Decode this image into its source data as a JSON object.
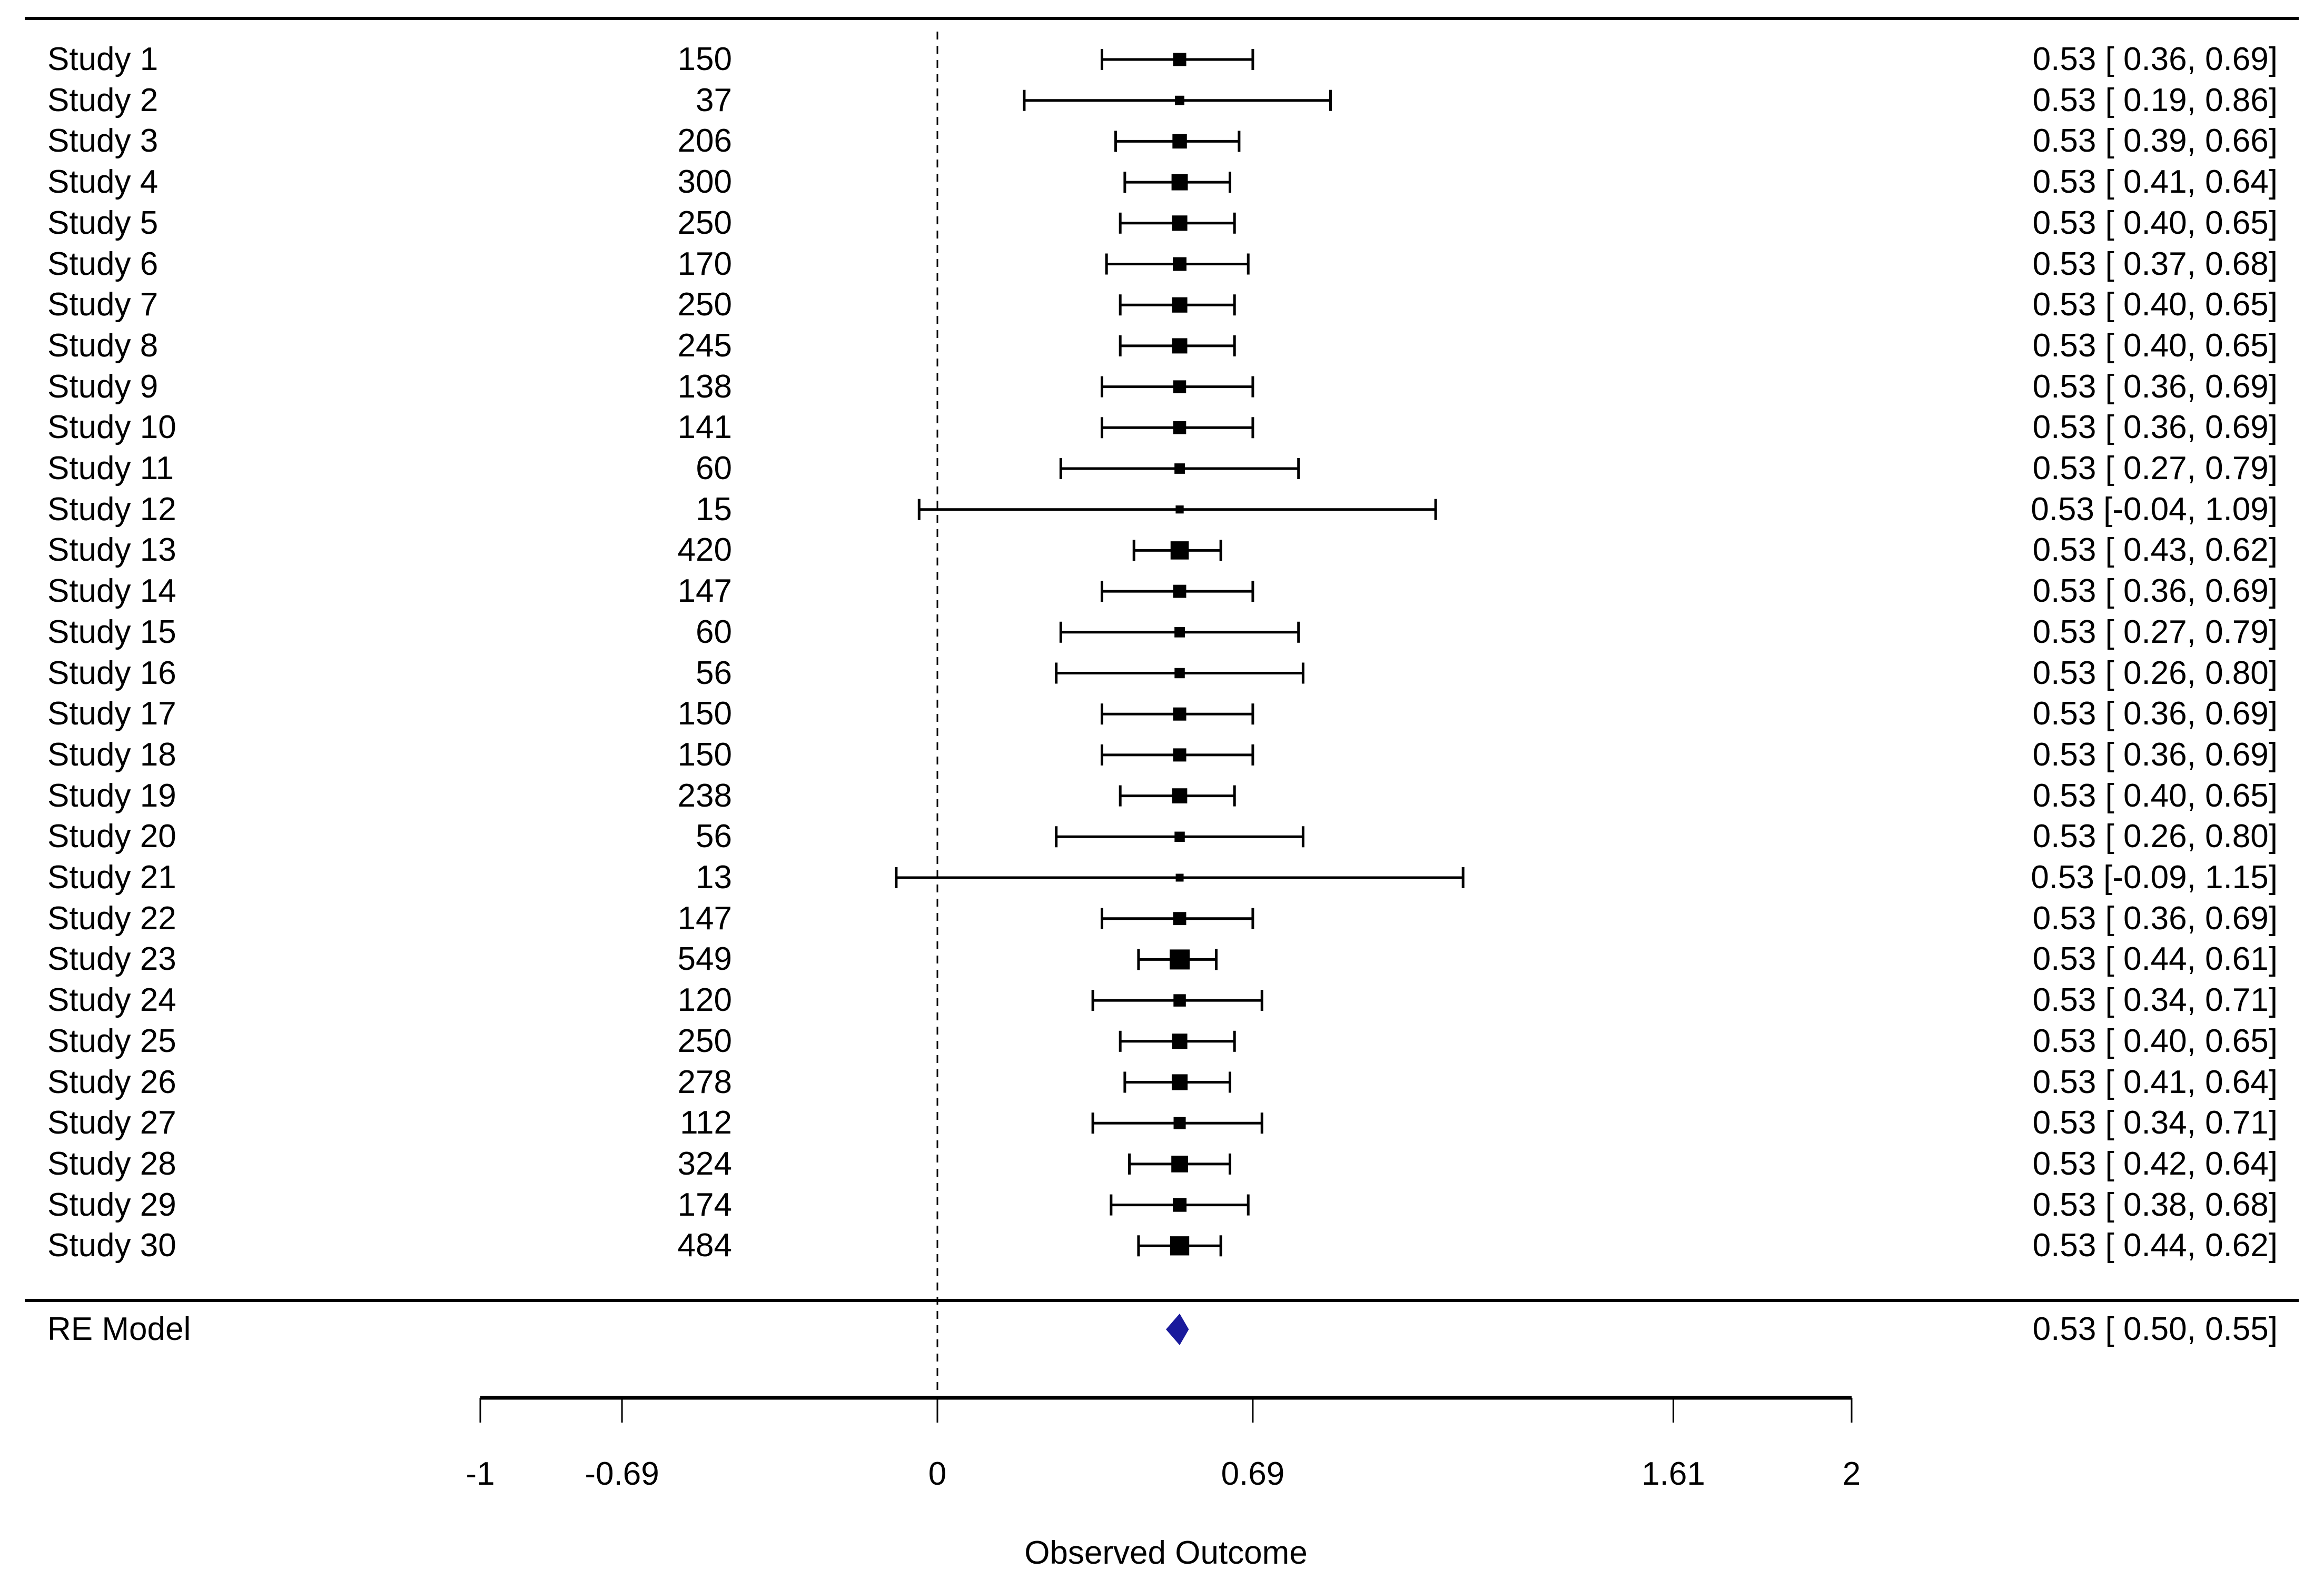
{
  "chart_data": {
    "type": "forest",
    "title": "",
    "xlabel": "Observed Outcome",
    "ylabel": "",
    "xlim": [
      -1,
      2
    ],
    "grid": false,
    "legend_position": "none",
    "reference_line": 0,
    "x_ticks": [
      {
        "value": -1,
        "label": "-1"
      },
      {
        "value": -0.69,
        "label": "-0.69"
      },
      {
        "value": 0,
        "label": "0"
      },
      {
        "value": 0.69,
        "label": "0.69"
      },
      {
        "value": 1.61,
        "label": "1.61"
      },
      {
        "value": 2,
        "label": "2"
      }
    ],
    "studies": [
      {
        "label": "Study 1",
        "n": 150,
        "est": 0.53,
        "lb": 0.36,
        "ub": 0.69,
        "annotation": "0.53 [ 0.36, 0.69]"
      },
      {
        "label": "Study 2",
        "n": 37,
        "est": 0.53,
        "lb": 0.19,
        "ub": 0.86,
        "annotation": "0.53 [ 0.19, 0.86]"
      },
      {
        "label": "Study 3",
        "n": 206,
        "est": 0.53,
        "lb": 0.39,
        "ub": 0.66,
        "annotation": "0.53 [ 0.39, 0.66]"
      },
      {
        "label": "Study 4",
        "n": 300,
        "est": 0.53,
        "lb": 0.41,
        "ub": 0.64,
        "annotation": "0.53 [ 0.41, 0.64]"
      },
      {
        "label": "Study 5",
        "n": 250,
        "est": 0.53,
        "lb": 0.4,
        "ub": 0.65,
        "annotation": "0.53 [ 0.40, 0.65]"
      },
      {
        "label": "Study 6",
        "n": 170,
        "est": 0.53,
        "lb": 0.37,
        "ub": 0.68,
        "annotation": "0.53 [ 0.37, 0.68]"
      },
      {
        "label": "Study 7",
        "n": 250,
        "est": 0.53,
        "lb": 0.4,
        "ub": 0.65,
        "annotation": "0.53 [ 0.40, 0.65]"
      },
      {
        "label": "Study 8",
        "n": 245,
        "est": 0.53,
        "lb": 0.4,
        "ub": 0.65,
        "annotation": "0.53 [ 0.40, 0.65]"
      },
      {
        "label": "Study 9",
        "n": 138,
        "est": 0.53,
        "lb": 0.36,
        "ub": 0.69,
        "annotation": "0.53 [ 0.36, 0.69]"
      },
      {
        "label": "Study 10",
        "n": 141,
        "est": 0.53,
        "lb": 0.36,
        "ub": 0.69,
        "annotation": "0.53 [ 0.36, 0.69]"
      },
      {
        "label": "Study 11",
        "n": 60,
        "est": 0.53,
        "lb": 0.27,
        "ub": 0.79,
        "annotation": "0.53 [ 0.27, 0.79]"
      },
      {
        "label": "Study 12",
        "n": 15,
        "est": 0.53,
        "lb": -0.04,
        "ub": 1.09,
        "annotation": "0.53 [-0.04, 1.09]"
      },
      {
        "label": "Study 13",
        "n": 420,
        "est": 0.53,
        "lb": 0.43,
        "ub": 0.62,
        "annotation": "0.53 [ 0.43, 0.62]"
      },
      {
        "label": "Study 14",
        "n": 147,
        "est": 0.53,
        "lb": 0.36,
        "ub": 0.69,
        "annotation": "0.53 [ 0.36, 0.69]"
      },
      {
        "label": "Study 15",
        "n": 60,
        "est": 0.53,
        "lb": 0.27,
        "ub": 0.79,
        "annotation": "0.53 [ 0.27, 0.79]"
      },
      {
        "label": "Study 16",
        "n": 56,
        "est": 0.53,
        "lb": 0.26,
        "ub": 0.8,
        "annotation": "0.53 [ 0.26, 0.80]"
      },
      {
        "label": "Study 17",
        "n": 150,
        "est": 0.53,
        "lb": 0.36,
        "ub": 0.69,
        "annotation": "0.53 [ 0.36, 0.69]"
      },
      {
        "label": "Study 18",
        "n": 150,
        "est": 0.53,
        "lb": 0.36,
        "ub": 0.69,
        "annotation": "0.53 [ 0.36, 0.69]"
      },
      {
        "label": "Study 19",
        "n": 238,
        "est": 0.53,
        "lb": 0.4,
        "ub": 0.65,
        "annotation": "0.53 [ 0.40, 0.65]"
      },
      {
        "label": "Study 20",
        "n": 56,
        "est": 0.53,
        "lb": 0.26,
        "ub": 0.8,
        "annotation": "0.53 [ 0.26, 0.80]"
      },
      {
        "label": "Study 21",
        "n": 13,
        "est": 0.53,
        "lb": -0.09,
        "ub": 1.15,
        "annotation": "0.53 [-0.09, 1.15]"
      },
      {
        "label": "Study 22",
        "n": 147,
        "est": 0.53,
        "lb": 0.36,
        "ub": 0.69,
        "annotation": "0.53 [ 0.36, 0.69]"
      },
      {
        "label": "Study 23",
        "n": 549,
        "est": 0.53,
        "lb": 0.44,
        "ub": 0.61,
        "annotation": "0.53 [ 0.44, 0.61]"
      },
      {
        "label": "Study 24",
        "n": 120,
        "est": 0.53,
        "lb": 0.34,
        "ub": 0.71,
        "annotation": "0.53 [ 0.34, 0.71]"
      },
      {
        "label": "Study 25",
        "n": 250,
        "est": 0.53,
        "lb": 0.4,
        "ub": 0.65,
        "annotation": "0.53 [ 0.40, 0.65]"
      },
      {
        "label": "Study 26",
        "n": 278,
        "est": 0.53,
        "lb": 0.41,
        "ub": 0.64,
        "annotation": "0.53 [ 0.41, 0.64]"
      },
      {
        "label": "Study 27",
        "n": 112,
        "est": 0.53,
        "lb": 0.34,
        "ub": 0.71,
        "annotation": "0.53 [ 0.34, 0.71]"
      },
      {
        "label": "Study 28",
        "n": 324,
        "est": 0.53,
        "lb": 0.42,
        "ub": 0.64,
        "annotation": "0.53 [ 0.42, 0.64]"
      },
      {
        "label": "Study 29",
        "n": 174,
        "est": 0.53,
        "lb": 0.38,
        "ub": 0.68,
        "annotation": "0.53 [ 0.38, 0.68]"
      },
      {
        "label": "Study 30",
        "n": 484,
        "est": 0.53,
        "lb": 0.44,
        "ub": 0.62,
        "annotation": "0.53 [ 0.44, 0.62]"
      }
    ],
    "summary": {
      "label": "RE Model",
      "est": 0.53,
      "lb": 0.5,
      "ub": 0.55,
      "annotation": "0.53 [ 0.50, 0.55]"
    },
    "colors": {
      "marker": "#000000",
      "line": "#000000",
      "text": "#000000",
      "summary_diamond": "#1a1a9c",
      "background": "#ffffff"
    }
  }
}
